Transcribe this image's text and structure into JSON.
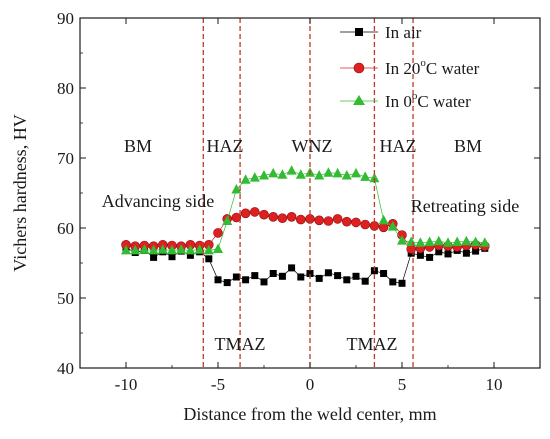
{
  "chart_data": {
    "type": "scatter",
    "title": "",
    "xlabel": "Distance from the weld center, mm",
    "ylabel": "Vichers hardness, HV",
    "xlim": [
      -12.5,
      12.5
    ],
    "ylim": [
      40,
      90
    ],
    "xticks": [
      -10,
      -5,
      0,
      5,
      10
    ],
    "xtick_labels": [
      "-10",
      "-5",
      "0",
      "5",
      "10"
    ],
    "yticks": [
      40,
      50,
      60,
      70,
      80,
      90
    ],
    "ytick_labels": [
      "40",
      "50",
      "60",
      "70",
      "80",
      "90"
    ],
    "grid": false,
    "legend_position": "top-right",
    "legend": [
      {
        "name_main": "In air",
        "name_pre": "",
        "name_sup": "",
        "name_post": ""
      },
      {
        "name_main": "",
        "name_pre": "In 20",
        "name_sup": "o",
        "name_post": "C water"
      },
      {
        "name_main": "",
        "name_pre": "In 0",
        "name_sup": "o",
        "name_post": "C water"
      }
    ],
    "vlines": [
      -5.8,
      -3.8,
      0,
      3.5,
      5.6
    ],
    "annotations": {
      "bm_left": "BM",
      "haz_left": "HAZ",
      "wnz": "WNZ",
      "haz_right": "HAZ",
      "bm_right": "BM",
      "advancing": "Advancing side",
      "retreating": "Retreating side",
      "tmaz_left": "TMAZ",
      "tmaz_right": "TMAZ"
    },
    "series": [
      {
        "name": "In air",
        "marker": "square",
        "color": "#000000",
        "x": [
          -10,
          -9.5,
          -9,
          -8.5,
          -8,
          -7.5,
          -7,
          -6.5,
          -6,
          -5.5,
          -5,
          -4.5,
          -4,
          -3.5,
          -3,
          -2.5,
          -2,
          -1.5,
          -1,
          -0.5,
          0,
          0.5,
          1,
          1.5,
          2,
          2.5,
          3,
          3.5,
          4,
          4.5,
          5,
          5.5,
          6,
          6.5,
          7,
          7.5,
          8,
          8.5,
          9,
          9.5
        ],
        "y": [
          57.2,
          56.5,
          56.8,
          55.8,
          56.6,
          55.9,
          56.7,
          56.1,
          56.6,
          55.6,
          52.6,
          52.2,
          53.0,
          52.6,
          53.2,
          52.3,
          53.5,
          53.1,
          54.3,
          53.0,
          53.5,
          52.8,
          53.6,
          53.2,
          52.6,
          53.1,
          52.4,
          53.9,
          53.5,
          52.3,
          52.1,
          56.4,
          56.1,
          55.8,
          56.6,
          56.3,
          56.8,
          56.4,
          56.7,
          57.1
        ]
      },
      {
        "name": "In 20C water",
        "marker": "circle",
        "color": "#e02020",
        "x": [
          -10,
          -9.5,
          -9,
          -8.5,
          -8,
          -7.5,
          -7,
          -6.5,
          -6,
          -5.5,
          -5,
          -4.5,
          -4,
          -3.5,
          -3,
          -2.5,
          -2,
          -1.5,
          -1,
          -0.5,
          0,
          0.5,
          1,
          1.5,
          2,
          2.5,
          3,
          3.5,
          4,
          4.5,
          5,
          5.5,
          6,
          6.5,
          7,
          7.5,
          8,
          8.5,
          9,
          9.5
        ],
        "y": [
          57.6,
          57.4,
          57.5,
          57.4,
          57.6,
          57.5,
          57.4,
          57.6,
          57.5,
          57.6,
          59.3,
          61.3,
          61.5,
          62.1,
          62.3,
          61.9,
          61.6,
          61.4,
          61.6,
          61.2,
          61.3,
          61.1,
          61.0,
          61.3,
          60.9,
          60.8,
          60.5,
          60.3,
          60.1,
          60.6,
          59.0,
          57.0,
          57.1,
          57.3,
          57.5,
          57.4,
          57.3,
          57.5,
          57.6,
          57.4
        ]
      },
      {
        "name": "In 0C water",
        "marker": "triangle",
        "color": "#33bb33",
        "x": [
          -10,
          -9.5,
          -9,
          -8.5,
          -8,
          -7.5,
          -7,
          -6.5,
          -6,
          -5.5,
          -5,
          -4.5,
          -4,
          -3.5,
          -3,
          -2.5,
          -2,
          -1.5,
          -1,
          -0.5,
          0,
          0.5,
          1,
          1.5,
          2,
          2.5,
          3,
          3.5,
          4,
          4.5,
          5,
          5.5,
          6,
          6.5,
          7,
          7.5,
          8,
          8.5,
          9,
          9.5
        ],
        "y": [
          56.8,
          56.8,
          56.9,
          56.8,
          56.9,
          56.8,
          56.9,
          56.8,
          56.9,
          56.8,
          57.0,
          61.0,
          65.5,
          66.9,
          67.2,
          67.5,
          67.8,
          67.6,
          68.2,
          67.6,
          67.9,
          67.5,
          67.9,
          67.8,
          67.5,
          67.8,
          67.3,
          67.1,
          61.1,
          60.2,
          58.2,
          58.0,
          57.9,
          58.0,
          58.1,
          57.9,
          58.0,
          58.1,
          58.0,
          57.9
        ]
      }
    ]
  }
}
